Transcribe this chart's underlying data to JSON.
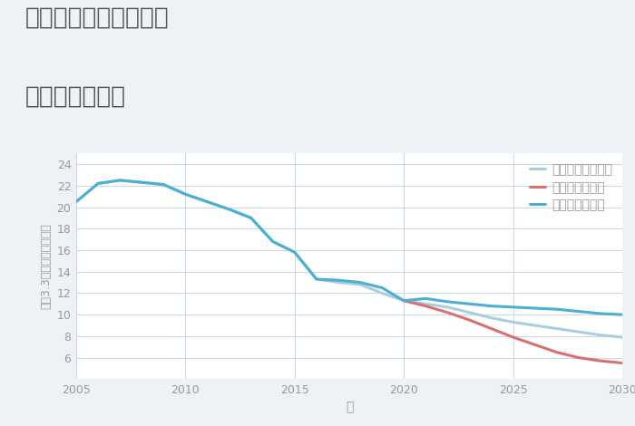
{
  "title_line1": "三重県伊賀市木興町の",
  "title_line2": "土地の価格推移",
  "xlabel": "年",
  "ylabel": "坪（3.3㎡）単価（万円）",
  "xlim": [
    2005,
    2030
  ],
  "ylim": [
    4,
    25
  ],
  "yticks": [
    6,
    8,
    10,
    12,
    14,
    16,
    18,
    20,
    22,
    24
  ],
  "xticks": [
    2005,
    2010,
    2015,
    2020,
    2025,
    2030
  ],
  "background_color": "#eef2f6",
  "plot_bg_color": "#ffffff",
  "good_scenario": {
    "label": "グッドシナリオ",
    "color": "#4bafd4",
    "linewidth": 2.2,
    "x": [
      2005,
      2006,
      2007,
      2008,
      2009,
      2010,
      2011,
      2012,
      2013,
      2014,
      2015,
      2016,
      2017,
      2018,
      2019,
      2020,
      2021,
      2022,
      2023,
      2024,
      2025,
      2026,
      2027,
      2028,
      2029,
      2030
    ],
    "y": [
      20.5,
      22.2,
      22.5,
      22.3,
      22.1,
      21.2,
      20.5,
      19.8,
      19.0,
      16.8,
      15.8,
      13.3,
      13.2,
      13.0,
      12.5,
      11.3,
      11.5,
      11.2,
      11.0,
      10.8,
      10.7,
      10.6,
      10.5,
      10.3,
      10.1,
      10.0
    ]
  },
  "bad_scenario": {
    "label": "バッドシナリオ",
    "color": "#d97070",
    "linewidth": 2.2,
    "x": [
      2020,
      2021,
      2022,
      2023,
      2024,
      2025,
      2026,
      2027,
      2028,
      2029,
      2030
    ],
    "y": [
      11.3,
      10.8,
      10.2,
      9.5,
      8.7,
      7.9,
      7.2,
      6.5,
      6.0,
      5.7,
      5.5
    ]
  },
  "normal_scenario": {
    "label": "ノーマルシナリオ",
    "color": "#a8cfe0",
    "linewidth": 2.2,
    "x": [
      2005,
      2006,
      2007,
      2008,
      2009,
      2010,
      2011,
      2012,
      2013,
      2014,
      2015,
      2016,
      2017,
      2018,
      2019,
      2020,
      2021,
      2022,
      2023,
      2024,
      2025,
      2026,
      2027,
      2028,
      2029,
      2030
    ],
    "y": [
      20.5,
      22.2,
      22.5,
      22.3,
      22.1,
      21.2,
      20.5,
      19.8,
      19.0,
      16.8,
      15.8,
      13.3,
      13.0,
      12.8,
      12.0,
      11.3,
      11.0,
      10.7,
      10.2,
      9.7,
      9.3,
      9.0,
      8.7,
      8.4,
      8.1,
      7.9
    ]
  },
  "title_color": "#555555",
  "title_fontsize": 19,
  "axis_label_color": "#999999",
  "tick_color": "#999999",
  "grid_color": "#c8d8e8",
  "legend_fontsize": 10
}
